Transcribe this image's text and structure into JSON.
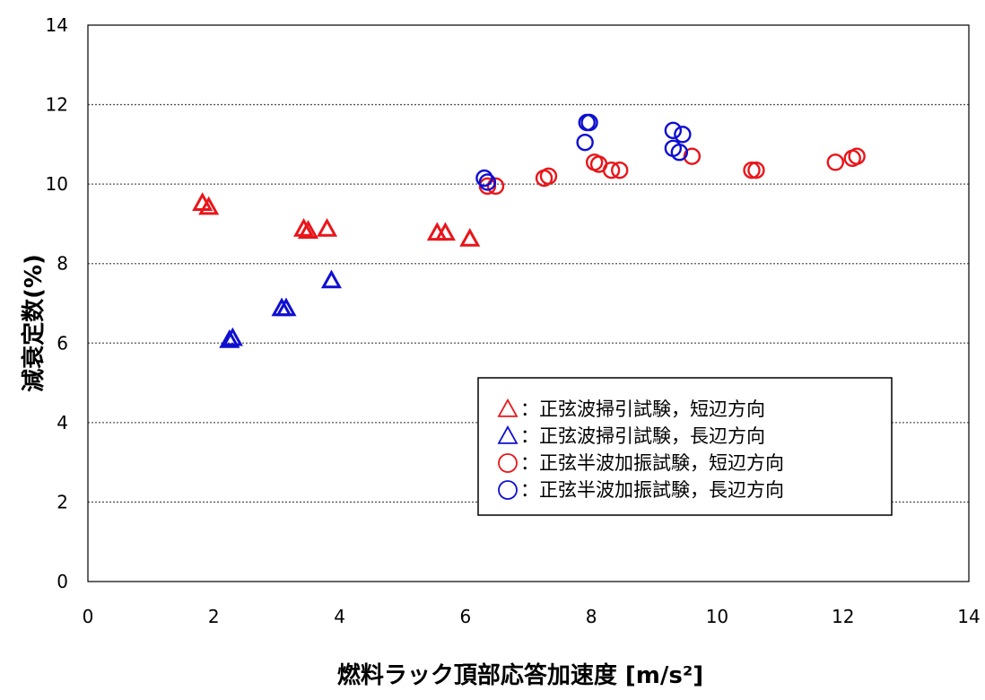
{
  "chart_data": {
    "type": "scatter",
    "xlabel": "燃料ラック頂部応答加速度 [m/s²]",
    "ylabel": "減衰定数(%)",
    "xlim": [
      0,
      14
    ],
    "ylim": [
      0,
      14
    ],
    "x_ticks": [
      0,
      2,
      4,
      6,
      8,
      10,
      12,
      14
    ],
    "y_ticks": [
      0,
      2,
      4,
      6,
      8,
      10,
      12,
      14
    ],
    "grid": "horizontal dotted",
    "legend_position": "lower-right",
    "series": [
      {
        "name": "：正弦波掃引試験，短辺方向",
        "marker": "triangle",
        "color": "#e8161b",
        "points": [
          [
            1.82,
            9.5
          ],
          [
            1.92,
            9.4
          ],
          [
            3.43,
            8.85
          ],
          [
            3.5,
            8.8
          ],
          [
            3.8,
            8.85
          ],
          [
            5.55,
            8.75
          ],
          [
            5.68,
            8.75
          ],
          [
            6.07,
            8.6
          ]
        ]
      },
      {
        "name": "：正弦波掃引試験，長辺方向",
        "marker": "triangle",
        "color": "#0f0fd0",
        "points": [
          [
            2.25,
            6.05
          ],
          [
            2.3,
            6.1
          ],
          [
            3.08,
            6.85
          ],
          [
            3.15,
            6.85
          ],
          [
            3.87,
            7.55
          ]
        ]
      },
      {
        "name": "：正弦半波加振試験，短辺方向",
        "marker": "circle",
        "color": "#e8161b",
        "points": [
          [
            6.35,
            9.95
          ],
          [
            6.48,
            9.95
          ],
          [
            7.25,
            10.15
          ],
          [
            7.32,
            10.2
          ],
          [
            8.05,
            10.55
          ],
          [
            8.12,
            10.5
          ],
          [
            8.32,
            10.35
          ],
          [
            8.45,
            10.35
          ],
          [
            9.6,
            10.7
          ],
          [
            10.55,
            10.35
          ],
          [
            10.62,
            10.35
          ],
          [
            11.88,
            10.55
          ],
          [
            12.15,
            10.65
          ],
          [
            12.22,
            10.7
          ]
        ]
      },
      {
        "name": "：正弦半波加振試験，長辺方向",
        "marker": "circle",
        "color": "#0f0fd0",
        "points": [
          [
            6.3,
            10.15
          ],
          [
            6.35,
            10.05
          ],
          [
            7.93,
            11.55
          ],
          [
            7.97,
            11.55
          ],
          [
            7.9,
            11.05
          ],
          [
            9.3,
            11.35
          ],
          [
            9.45,
            11.25
          ],
          [
            9.3,
            10.9
          ],
          [
            9.4,
            10.8
          ]
        ]
      }
    ]
  }
}
